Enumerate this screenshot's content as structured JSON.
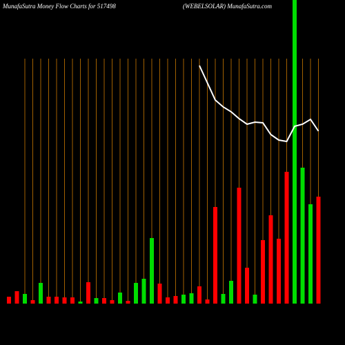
{
  "chart_data": {
    "type": "bar",
    "title": "MunafaSutra  Money Flow  Charts for 517498",
    "subtitle": "(WEBELSOLAR) MunafaSutra.com",
    "categories": [
      null,
      null,
      null,
      null,
      null,
      null,
      null,
      null,
      null,
      null,
      null,
      null,
      null,
      null,
      null,
      null,
      null,
      null,
      null,
      null,
      null,
      null,
      null,
      null,
      null,
      null,
      null,
      null,
      null,
      null,
      null,
      null,
      null,
      null,
      null,
      null,
      null,
      null,
      null,
      null
    ],
    "values": [
      10,
      18,
      14,
      5,
      30,
      10,
      10,
      9,
      9,
      3,
      31,
      8,
      8,
      5,
      16,
      4,
      30,
      36,
      95,
      29,
      9,
      11,
      13,
      15,
      25,
      6,
      140,
      14,
      33,
      168,
      52,
      13,
      92,
      128,
      94,
      191,
      460,
      197,
      144,
      155
    ],
    "colors": [
      "#ff0000",
      "#ff0000",
      "#00dd00",
      "#ff0000",
      "#00dd00",
      "#ff0000",
      "#ff0000",
      "#ff0000",
      "#ff0000",
      "#00dd00",
      "#ff0000",
      "#00dd00",
      "#ff0000",
      "#ff0000",
      "#00dd00",
      "#ff0000",
      "#00dd00",
      "#00dd00",
      "#00dd00",
      "#ff0000",
      "#ff0000",
      "#ff0000",
      "#00dd00",
      "#00dd00",
      "#ff0000",
      "#ff0000",
      "#ff0000",
      "#00dd00",
      "#00dd00",
      "#ff0000",
      "#ff0000",
      "#00dd00",
      "#ff0000",
      "#ff0000",
      "#ff0000",
      "#ff0000",
      "#00dd00",
      "#00dd00",
      "#00dd00",
      "#ff0000"
    ],
    "ylim": [
      0,
      440
    ],
    "line": {
      "color": "#ffffff",
      "axis": "y2",
      "values": [
        null,
        null,
        null,
        null,
        null,
        null,
        null,
        null,
        null,
        null,
        null,
        null,
        null,
        null,
        null,
        null,
        null,
        null,
        null,
        null,
        null,
        null,
        null,
        null,
        345,
        320,
        295,
        285,
        278,
        268,
        260,
        263,
        262,
        245,
        237,
        235,
        257,
        260,
        267,
        250
      ]
    },
    "y2lim": [
      0,
      440
    ],
    "grid_color": "#cc7a00"
  }
}
